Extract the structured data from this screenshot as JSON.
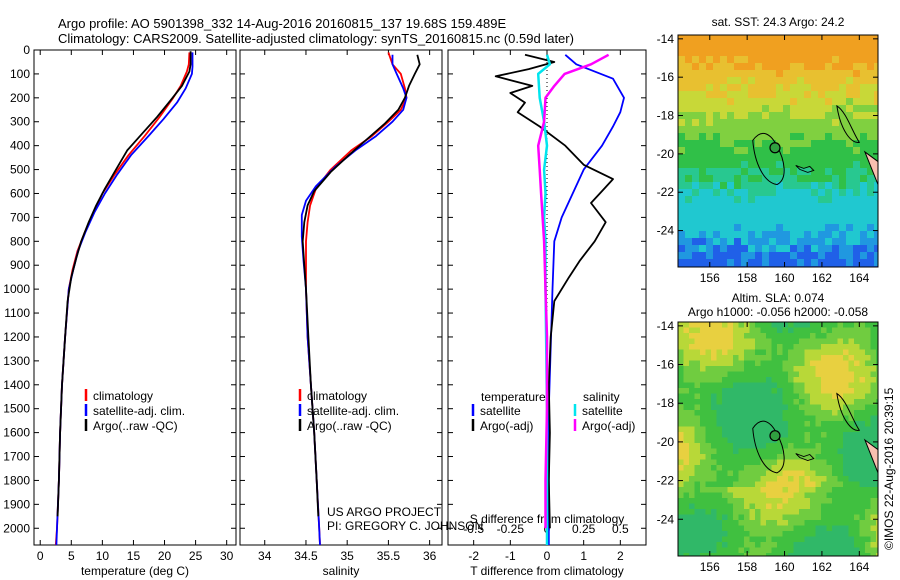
{
  "header": {
    "line1": "Argo profile: AO 5901398_332 14-Aug-2016 20160815_137 19.68S 159.489E",
    "line2": "Climatology: CARS2009. Satellite-adjusted climatology: synTS_20160815.nc (0.59d later)"
  },
  "credits": {
    "project": "US ARGO PROJECT",
    "pi": "PI: GREGORY C. JOHNSON",
    "imos": "©IMOS 22-Aug-2016 20:39:15"
  },
  "colors": {
    "climatology": "#ff0000",
    "satellite": "#0000ff",
    "argo": "#000000",
    "sat_salinity": "#00e5ee",
    "argo_salinity": "#ff00ff"
  },
  "depth_axis": {
    "ticks": [
      "0",
      "100",
      "200",
      "300",
      "400",
      "500",
      "600",
      "700",
      "800",
      "900",
      "1000",
      "1100",
      "1200",
      "1300",
      "1400",
      "1500",
      "1600",
      "1700",
      "1800",
      "1900",
      "2000"
    ],
    "ylim": [
      0,
      2070
    ]
  },
  "chart_data": [
    {
      "type": "line",
      "xlabel": "temperature (deg C)",
      "xlim": [
        -1,
        31.5
      ],
      "xticks": [
        "0",
        "5",
        "10",
        "15",
        "20",
        "25",
        "30"
      ],
      "legend": [
        "climatology",
        "satellite-adj. clim.",
        "Argo(..raw -QC)"
      ],
      "series": [
        {
          "name": "climatology",
          "color": "#ff0000",
          "points": [
            [
              24,
              10
            ],
            [
              23.9,
              60
            ],
            [
              23.6,
              90
            ],
            [
              22.6,
              150
            ],
            [
              21.4,
              200
            ],
            [
              19.2,
              280
            ],
            [
              16.8,
              360
            ],
            [
              14.2,
              440
            ],
            [
              12,
              520
            ],
            [
              10,
              600
            ],
            [
              8.6,
              680
            ],
            [
              7.2,
              760
            ],
            [
              6,
              840
            ],
            [
              5.2,
              920
            ],
            [
              4.6,
              1000
            ],
            [
              4,
              1200
            ],
            [
              3.5,
              1400
            ],
            [
              3.2,
              1600
            ],
            [
              3,
              1800
            ],
            [
              2.7,
              2000
            ],
            [
              2.5,
              2070
            ]
          ]
        },
        {
          "name": "satellite-adj. clim.",
          "color": "#0000ff",
          "points": [
            [
              24.5,
              10
            ],
            [
              24.5,
              70
            ],
            [
              24.4,
              100
            ],
            [
              23.4,
              160
            ],
            [
              22,
              220
            ],
            [
              19.8,
              290
            ],
            [
              17.4,
              360
            ],
            [
              14.6,
              440
            ],
            [
              12.4,
              520
            ],
            [
              10.4,
              600
            ],
            [
              8.7,
              680
            ],
            [
              7.3,
              760
            ],
            [
              6.1,
              840
            ],
            [
              5.3,
              920
            ],
            [
              4.6,
              1000
            ],
            [
              4,
              1200
            ],
            [
              3.5,
              1400
            ],
            [
              3.2,
              1600
            ],
            [
              3,
              1800
            ],
            [
              2.7,
              2000
            ],
            [
              2.6,
              2070
            ]
          ]
        },
        {
          "name": "Argo(..raw -QC)",
          "color": "#000000",
          "points": [
            [
              24.2,
              5
            ],
            [
              24.2,
              60
            ],
            [
              24,
              90
            ],
            [
              22.8,
              150
            ],
            [
              21,
              210
            ],
            [
              18.8,
              280
            ],
            [
              16.4,
              350
            ],
            [
              14,
              420
            ],
            [
              12.2,
              500
            ],
            [
              10.4,
              580
            ],
            [
              9,
              650
            ],
            [
              7.8,
              720
            ],
            [
              6.6,
              800
            ],
            [
              5.8,
              870
            ],
            [
              5,
              950
            ],
            [
              4.4,
              1050
            ],
            [
              4,
              1200
            ],
            [
              3.5,
              1400
            ],
            [
              3.2,
              1600
            ],
            [
              3,
              1800
            ],
            [
              2.8,
              1950
            ]
          ]
        }
      ]
    },
    {
      "type": "line",
      "xlabel": "salinity",
      "xlim": [
        33.7,
        36.15
      ],
      "xticks": [
        "34",
        "34.5",
        "35",
        "35.5",
        "36"
      ],
      "legend": [
        "climatology",
        "satellite-adj. clim.",
        "Argo(..raw -QC)"
      ],
      "series": [
        {
          "name": "climatology",
          "color": "#ff0000",
          "points": [
            [
              35.5,
              10
            ],
            [
              35.55,
              60
            ],
            [
              35.65,
              100
            ],
            [
              35.7,
              160
            ],
            [
              35.72,
              200
            ],
            [
              35.65,
              250
            ],
            [
              35.5,
              300
            ],
            [
              35.3,
              360
            ],
            [
              35.05,
              420
            ],
            [
              34.8,
              500
            ],
            [
              34.62,
              580
            ],
            [
              34.55,
              650
            ],
            [
              34.52,
              720
            ],
            [
              34.5,
              800
            ],
            [
              34.5,
              900
            ],
            [
              34.5,
              1000
            ],
            [
              34.52,
              1200
            ],
            [
              34.56,
              1400
            ],
            [
              34.6,
              1600
            ],
            [
              34.63,
              1800
            ],
            [
              34.66,
              2000
            ],
            [
              34.67,
              2070
            ]
          ]
        },
        {
          "name": "satellite-adj. clim.",
          "color": "#0000ff",
          "points": [
            [
              35.55,
              20
            ],
            [
              35.55,
              60
            ],
            [
              35.6,
              100
            ],
            [
              35.68,
              160
            ],
            [
              35.72,
              200
            ],
            [
              35.68,
              250
            ],
            [
              35.55,
              300
            ],
            [
              35.35,
              360
            ],
            [
              35.1,
              420
            ],
            [
              34.85,
              490
            ],
            [
              34.62,
              570
            ],
            [
              34.5,
              630
            ],
            [
              34.45,
              690
            ],
            [
              34.45,
              780
            ],
            [
              34.47,
              880
            ],
            [
              34.5,
              1000
            ],
            [
              34.52,
              1200
            ],
            [
              34.56,
              1400
            ],
            [
              34.6,
              1600
            ],
            [
              34.63,
              1800
            ],
            [
              34.66,
              2000
            ],
            [
              34.67,
              2070
            ]
          ]
        },
        {
          "name": "Argo(..raw -QC)",
          "color": "#000000",
          "points": [
            [
              35.85,
              20
            ],
            [
              35.88,
              60
            ],
            [
              35.82,
              100
            ],
            [
              35.75,
              150
            ],
            [
              35.7,
              200
            ],
            [
              35.62,
              250
            ],
            [
              35.45,
              310
            ],
            [
              35.25,
              370
            ],
            [
              35.02,
              440
            ],
            [
              34.8,
              510
            ],
            [
              34.6,
              590
            ],
            [
              34.52,
              650
            ],
            [
              34.48,
              720
            ],
            [
              34.46,
              800
            ],
            [
              34.48,
              900
            ],
            [
              34.5,
              1000
            ],
            [
              34.53,
              1200
            ],
            [
              34.56,
              1400
            ],
            [
              34.6,
              1600
            ],
            [
              34.63,
              1800
            ],
            [
              34.65,
              1950
            ]
          ]
        }
      ]
    },
    {
      "type": "line",
      "xlabel": "T difference from climatology",
      "xlabel_top": "S difference from climatology",
      "xlim": [
        -2.7,
        2.7
      ],
      "xticks": [
        "-2",
        "-1",
        "0",
        "1",
        "2"
      ],
      "xticks_top": [
        "-0.5",
        "-0.25",
        "0",
        "0.25",
        "0.5"
      ],
      "legend_headers": [
        "temperature",
        "salinity"
      ],
      "legend": [
        "satellite",
        "Argo(-adj)",
        "satellite",
        "Argo(-adj)"
      ],
      "series": [
        {
          "name": "temperature satellite",
          "color": "#0000ff",
          "points": [
            [
              0.5,
              20
            ],
            [
              0.8,
              60
            ],
            [
              1.8,
              120
            ],
            [
              2.1,
              200
            ],
            [
              2.0,
              260
            ],
            [
              1.8,
              320
            ],
            [
              1.5,
              400
            ],
            [
              1.0,
              500
            ],
            [
              0.7,
              600
            ],
            [
              0.4,
              700
            ],
            [
              0.2,
              800
            ],
            [
              0.15,
              1000
            ],
            [
              0.05,
              1500
            ],
            [
              0.05,
              2070
            ]
          ]
        },
        {
          "name": "temperature Argo(-adj)",
          "color": "#000000",
          "points": [
            [
              -0.6,
              20
            ],
            [
              0.2,
              50
            ],
            [
              -0.5,
              80
            ],
            [
              -1.4,
              110
            ],
            [
              -0.4,
              150
            ],
            [
              -1.0,
              180
            ],
            [
              -0.6,
              220
            ],
            [
              -0.8,
              260
            ],
            [
              -0.2,
              320
            ],
            [
              0.5,
              400
            ],
            [
              1.0,
              480
            ],
            [
              1.8,
              540
            ],
            [
              1.5,
              590
            ],
            [
              1.2,
              640
            ],
            [
              1.6,
              720
            ],
            [
              1.3,
              800
            ],
            [
              0.9,
              880
            ],
            [
              0.6,
              950
            ],
            [
              0.2,
              1050
            ],
            [
              0.1,
              1200
            ],
            [
              0.05,
              1400
            ],
            [
              0.08,
              1600
            ],
            [
              0.05,
              1800
            ],
            [
              0.08,
              2000
            ]
          ]
        },
        {
          "name": "salinity satellite",
          "color": "#00e5ee",
          "points": [
            [
              0,
              20
            ],
            [
              0.02,
              60
            ],
            [
              -0.06,
              100
            ],
            [
              -0.05,
              200
            ],
            [
              -0.02,
              300
            ],
            [
              0,
              400
            ],
            [
              -0.02,
              500
            ],
            [
              -0.01,
              600
            ],
            [
              -0.02,
              700
            ],
            [
              -0.01,
              800
            ],
            [
              -0.01,
              1000
            ],
            [
              0,
              1500
            ],
            [
              0,
              2070
            ]
          ]
        },
        {
          "name": "salinity Argo(-adj)",
          "color": "#ff00ff",
          "points": [
            [
              0.42,
              20
            ],
            [
              0.3,
              60
            ],
            [
              0.12,
              100
            ],
            [
              0.05,
              150
            ],
            [
              -0.01,
              200
            ],
            [
              -0.02,
              300
            ],
            [
              -0.06,
              400
            ],
            [
              -0.05,
              500
            ],
            [
              -0.04,
              600
            ],
            [
              -0.03,
              700
            ],
            [
              -0.02,
              800
            ],
            [
              -0.01,
              1000
            ],
            [
              0,
              1200
            ],
            [
              0,
              1500
            ],
            [
              -0.01,
              1800
            ],
            [
              -0.01,
              2000
            ]
          ]
        }
      ]
    }
  ],
  "map_sst": {
    "title": "sat. SST: 24.3 Argo: 24.2",
    "xticks": [
      "156",
      "158",
      "160",
      "162",
      "164"
    ],
    "yticks": [
      "-14",
      "-16",
      "-18",
      "-20",
      "-22",
      "-24"
    ],
    "xlim": [
      154.3,
      165.0
    ],
    "ylim": [
      -25.9,
      -13.8
    ],
    "float": {
      "lon": 159.489,
      "lat": -19.68
    }
  },
  "map_sla": {
    "title_line1": "Altim. SLA: 0.074",
    "title_line2": "Argo h1000: -0.056 h2000: -0.058",
    "xticks": [
      "156",
      "158",
      "160",
      "162",
      "164"
    ],
    "yticks": [
      "-14",
      "-16",
      "-18",
      "-20",
      "-22",
      "-24"
    ],
    "xlim": [
      154.3,
      165.0
    ],
    "ylim": [
      -25.9,
      -13.8
    ],
    "float": {
      "lon": 159.489,
      "lat": -19.68
    }
  }
}
